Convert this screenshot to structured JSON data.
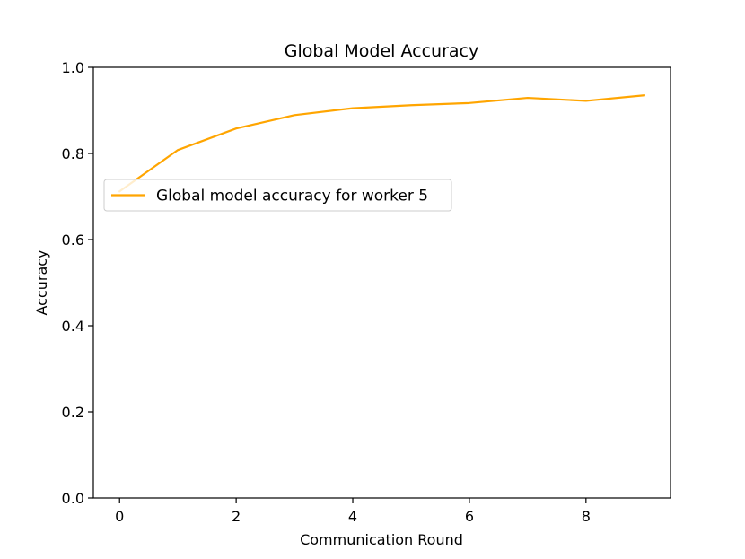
{
  "chart_data": {
    "type": "line",
    "title": "Global Model Accuracy",
    "xlabel": "Communication Round",
    "ylabel": "Accuracy",
    "xlim": [
      -0.45,
      9.45
    ],
    "ylim": [
      0.0,
      1.0
    ],
    "xticks": [
      "0",
      "2",
      "4",
      "6",
      "8"
    ],
    "yticks": [
      "0.0",
      "0.2",
      "0.4",
      "0.6",
      "0.8",
      "1.0"
    ],
    "grid": false,
    "legend_position": "center-left",
    "series": [
      {
        "name": "Global model accuracy for worker 5",
        "color": "#ffa500",
        "x": [
          0,
          1,
          2,
          3,
          4,
          5,
          6,
          7,
          8,
          9
        ],
        "y": [
          0.712,
          0.808,
          0.858,
          0.889,
          0.905,
          0.912,
          0.917,
          0.929,
          0.922,
          0.935
        ]
      }
    ]
  }
}
